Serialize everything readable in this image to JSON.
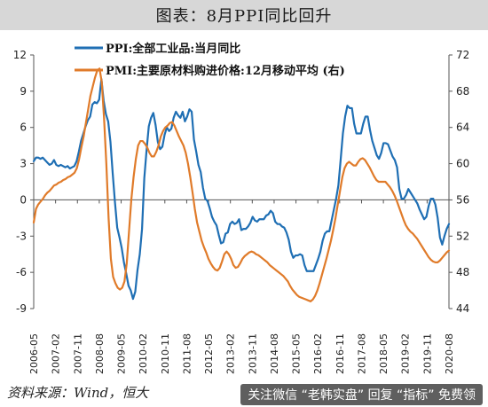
{
  "header": {
    "title": "图表：8月PPI同比回升"
  },
  "footer": {
    "source": "资料来源：Wind，恒大",
    "watermark": "关注微信 “老韩实盘” 回复 “指标” 免费领"
  },
  "colors": {
    "ppi": "#1f6fb4",
    "pmi": "#e07b2a",
    "axis": "#555555",
    "text": "#222222"
  },
  "chart_data": {
    "type": "line",
    "title": "",
    "xlabel": "",
    "ylabel": "",
    "grid": false,
    "legend_placement": "top",
    "y_left": {
      "min": -9,
      "max": 12,
      "ticks": [
        -9,
        -6,
        -3,
        0,
        3,
        6,
        9,
        12
      ]
    },
    "y_right": {
      "min": 44,
      "max": 72,
      "ticks": [
        44,
        48,
        52,
        56,
        60,
        64,
        68,
        72
      ]
    },
    "x_tick_labels": [
      "2006-05",
      "2007-02",
      "2007-11",
      "2008-08",
      "2009-05",
      "2010-02",
      "2010-11",
      "2011-08",
      "2012-05",
      "2013-02",
      "2013-11",
      "2014-08",
      "2015-05",
      "2016-02",
      "2016-11",
      "2017-08",
      "2018-05",
      "2019-02",
      "2019-11",
      "2020-08"
    ],
    "series": [
      {
        "name": "PPI:全部工业品:当月同比",
        "axis": "left",
        "values": [
          3.2,
          3.5,
          3.5,
          3.4,
          3.5,
          3.3,
          3.1,
          2.9,
          3.0,
          3.3,
          2.9,
          2.8,
          2.9,
          2.8,
          2.7,
          2.8,
          2.6,
          2.7,
          2.8,
          3.2,
          4.0,
          4.9,
          5.5,
          6.1,
          6.6,
          6.9,
          7.9,
          8.1,
          8.0,
          8.3,
          10.0,
          8.2,
          7.1,
          6.5,
          4.8,
          2.2,
          -0.2,
          -2.3,
          -3.1,
          -4.0,
          -5.2,
          -6.1,
          -7.1,
          -7.5,
          -8.2,
          -7.6,
          -5.8,
          -4.5,
          -2.4,
          1.8,
          4.1,
          6.1,
          6.8,
          7.2,
          6.2,
          4.8,
          4.2,
          4.4,
          5.4,
          6.0,
          5.7,
          5.9,
          6.8,
          7.3,
          7.0,
          6.8,
          7.3,
          6.5,
          6.9,
          7.5,
          7.3,
          5.0,
          4.0,
          2.9,
          2.3,
          1.0,
          0.1,
          -0.1,
          -0.7,
          -1.4,
          -1.8,
          -2.1,
          -2.9,
          -3.6,
          -3.5,
          -2.8,
          -2.7,
          -2.0,
          -1.8,
          -2.0,
          -1.9,
          -1.6,
          -2.5,
          -2.4,
          -2.4,
          -2.2,
          -1.9,
          -1.4,
          -1.7,
          -1.8,
          -1.6,
          -1.6,
          -1.6,
          -1.3,
          -1.2,
          -0.9,
          -1.1,
          -1.8,
          -2.0,
          -2.0,
          -2.2,
          -2.3,
          -2.7,
          -3.3,
          -4.3,
          -4.8,
          -4.6,
          -4.6,
          -4.5,
          -4.6,
          -5.4,
          -5.9,
          -5.9,
          -5.9,
          -5.9,
          -5.4,
          -4.9,
          -4.3,
          -3.4,
          -2.8,
          -2.6,
          -2.6,
          -1.7,
          -0.8,
          0.1,
          1.2,
          3.3,
          5.5,
          6.9,
          7.8,
          7.6,
          7.6,
          6.3,
          5.5,
          5.5,
          5.5,
          6.3,
          6.9,
          6.9,
          5.8,
          4.9,
          4.3,
          3.7,
          3.4,
          3.9,
          4.7,
          4.7,
          4.6,
          4.1,
          3.6,
          3.3,
          2.7,
          0.9,
          0.1,
          0.1,
          0.4,
          0.9,
          0.6,
          0.3,
          0.0,
          -0.3,
          -0.8,
          -1.2,
          -1.6,
          -1.4,
          -0.5,
          0.1,
          0.1,
          -0.4,
          -1.5,
          -3.1,
          -3.7,
          -3.0,
          -2.4,
          -2.0
        ]
      },
      {
        "name": "PMI:主要原材料购进价格:12月移动平均 (右)",
        "axis": "right",
        "values": [
          53.5,
          55,
          55.5,
          55.8,
          56.1,
          56.5,
          56.8,
          57,
          57.3,
          57.6,
          57.7,
          57.9,
          58,
          58.2,
          58.3,
          58.5,
          58.6,
          58.8,
          59,
          59.5,
          60.5,
          61.8,
          63,
          64.5,
          66,
          67.5,
          68.5,
          69.5,
          70.3,
          70.5,
          69,
          65,
          60,
          54,
          49.5,
          47.5,
          46.8,
          46.3,
          46.1,
          46.3,
          47,
          49,
          52.5,
          56,
          58.5,
          60.5,
          62,
          62.5,
          62.5,
          62.2,
          61.8,
          61.2,
          60.8,
          60.8,
          61.3,
          62,
          63,
          63.6,
          64,
          64.2,
          64.5,
          64.6,
          64.2,
          63.6,
          63,
          62.5,
          62,
          61.2,
          60,
          58.5,
          56.8,
          55,
          53.5,
          52.5,
          51.5,
          50.8,
          50.2,
          49.5,
          49,
          48.6,
          48.3,
          48.2,
          48.5,
          49.2,
          50,
          50.3,
          50,
          49.5,
          48.8,
          48.5,
          48.6,
          49.0,
          49.5,
          49.8,
          50.0,
          50.2,
          50.3,
          50.2,
          50.0,
          49.9,
          49.7,
          49.5,
          49.3,
          49.1,
          48.8,
          48.6,
          48.4,
          48.2,
          48.0,
          47.8,
          47.6,
          47.3,
          47.0,
          46.5,
          46.1,
          45.8,
          45.5,
          45.3,
          45.2,
          45.1,
          45.0,
          44.9,
          44.8,
          45.0,
          45.4,
          46.0,
          46.8,
          47.7,
          48.6,
          49.5,
          50.5,
          51.5,
          52.7,
          54,
          55.5,
          57,
          58.5,
          59.5,
          60,
          60.2,
          60,
          59.8,
          59.8,
          60.2,
          60.5,
          60.6,
          60.4,
          60,
          59.6,
          59.1,
          58.6,
          58.2,
          58,
          58,
          58,
          58,
          57.7,
          57.4,
          57,
          56.5,
          55.9,
          55.2,
          54.5,
          53.8,
          53.2,
          52.8,
          52.5,
          52.3,
          52,
          51.7,
          51.3,
          50.9,
          50.5,
          50.1,
          49.7,
          49.4,
          49.2,
          49.1,
          49.1,
          49.3,
          49.6,
          49.9,
          50.2,
          50.4
        ]
      }
    ]
  }
}
